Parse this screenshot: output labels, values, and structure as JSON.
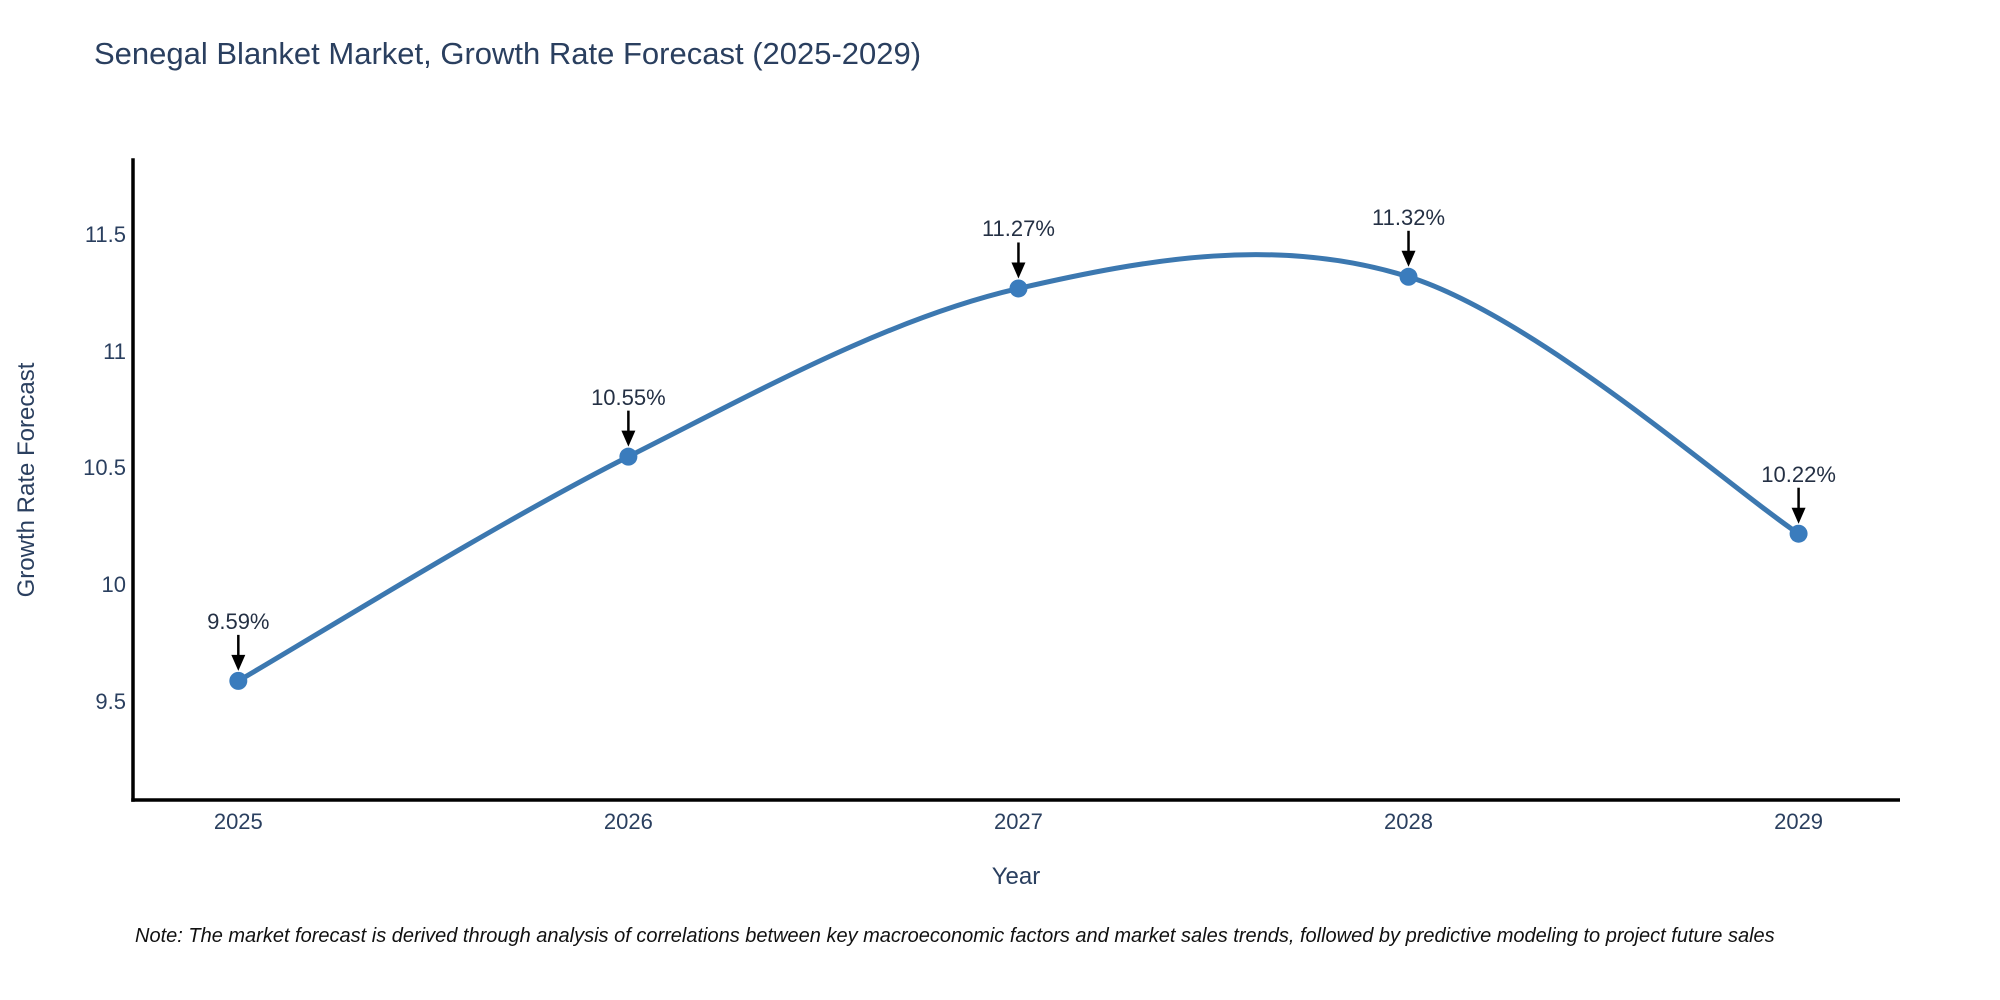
{
  "chart": {
    "title": "Senegal Blanket Market, Growth Rate Forecast (2025-2029)",
    "xlabel": "Year",
    "ylabel": "Growth Rate Forecast",
    "note": "Note: The market forecast is derived through analysis of correlations between key macroeconomic factors and market sales trends, followed by predictive modeling to project future sales"
  },
  "chart_data": {
    "type": "line",
    "title": "Senegal Blanket Market, Growth Rate Forecast (2025-2029)",
    "xlabel": "Year",
    "ylabel": "Growth Rate Forecast",
    "x": [
      2025,
      2026,
      2027,
      2028,
      2029
    ],
    "values": [
      9.59,
      10.55,
      11.27,
      11.32,
      10.22
    ],
    "point_labels": [
      "9.59%",
      "10.55%",
      "11.27%",
      "11.32%",
      "10.22%"
    ],
    "xtick_labels": [
      "2025",
      "2026",
      "2027",
      "2028",
      "2029"
    ],
    "yticks": [
      9.5,
      10,
      10.5,
      11,
      11.5
    ],
    "ytick_labels": [
      "9.5",
      "10",
      "10.5",
      "11",
      "11.5"
    ],
    "xlim": [
      2024.73,
      2029.26
    ],
    "ylim": [
      9.08,
      11.82
    ],
    "line_shape": "spline",
    "grid": false,
    "legend": "none",
    "line_color": "#3c78b0",
    "marker_color": "#3a7cbd",
    "arrow_color": "#000000",
    "axis_color": "#000000",
    "text_color": "#2a3f5f"
  }
}
